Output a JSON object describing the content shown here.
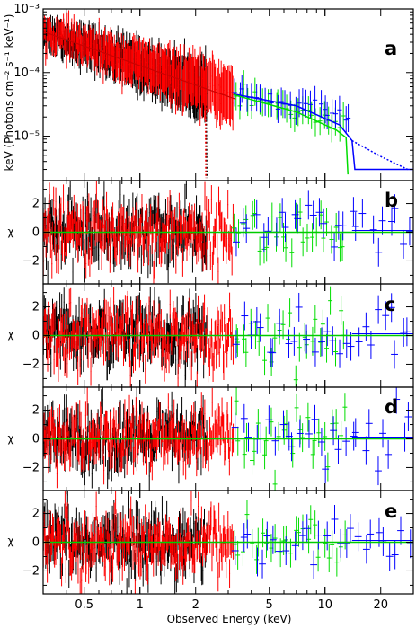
{
  "figure": {
    "x_axis_title": "Observed Energy (keV)",
    "y_axis_title_a": "keV (Photons cm⁻² s⁻¹ keV⁻¹)",
    "y_axis_title_resid": "χ"
  },
  "colors": {
    "pn": "#000000",
    "mos": "#ff0000",
    "isgri": "#00dd00",
    "bat": "#0000ff",
    "model": "#00cc00"
  },
  "chart_data": [
    {
      "type": "scatter",
      "panel": "a",
      "label": "a",
      "x_scale": "log",
      "y_scale": "log",
      "xlim": [
        0.3,
        30
      ],
      "ylim": [
        2e-06,
        0.001
      ],
      "xticks": [
        0.5,
        1,
        2,
        5,
        10,
        20
      ],
      "xtick_labels": [
        "0.5",
        "1",
        "2",
        "5",
        "10",
        "20"
      ],
      "yticks": [
        1e-05,
        0.0001,
        0.001
      ],
      "ytick_labels": [
        "10⁻⁵",
        "10⁻⁴",
        "10⁻³"
      ],
      "series": [
        {
          "color_key": "pn",
          "band": [
            0.3,
            2.3
          ],
          "start": 0.00045,
          "slope": -1.05,
          "scatter": 0.17
        },
        {
          "color_key": "mos",
          "band": [
            0.3,
            3.2
          ],
          "start": 0.00044,
          "slope": -1.0,
          "scatter": 0.16
        },
        {
          "color_key": "isgri",
          "band": [
            3.2,
            13
          ],
          "start": 4.5e-05,
          "slope": -0.75,
          "scatter": 0.18
        },
        {
          "color_key": "bat",
          "band": [
            3.2,
            14
          ],
          "start": 4.8e-05,
          "slope": -0.6,
          "scatter": 0.12
        }
      ],
      "model_lines": [
        {
          "color_key": "bat",
          "style": "solid",
          "x": [
            3.2,
            7,
            12,
            14,
            14.5,
            30
          ],
          "y": [
            4.6e-05,
            3e-05,
            1.5e-05,
            8.5e-06,
            3e-06,
            3e-06
          ]
        },
        {
          "color_key": "isgri",
          "style": "solid",
          "x": [
            3.2,
            7,
            11.5,
            13,
            13.3
          ],
          "y": [
            4.5e-05,
            2.4e-05,
            1.25e-05,
            9.5e-06,
            2.5e-06
          ]
        },
        {
          "color_key": "bat",
          "style": "dotted",
          "x": [
            14,
            20,
            28
          ],
          "y": [
            8.5e-06,
            4.8e-06,
            3e-06
          ]
        },
        {
          "color_key": "pn",
          "style": "dotted",
          "x": [
            2.28,
            2.3
          ],
          "y": [
            3e-05,
            2.2e-06
          ]
        },
        {
          "color_key": "mos",
          "style": "dotted",
          "x": [
            2.26,
            2.27
          ],
          "y": [
            3e-05,
            2.2e-06
          ]
        }
      ]
    },
    {
      "type": "scatter",
      "panel": "b",
      "label": "b",
      "x_scale": "log",
      "xlim": [
        0.3,
        30
      ],
      "ylim": [
        -3.6,
        3.6
      ],
      "yticks": [
        -2,
        0,
        2
      ],
      "ytick_labels": [
        "−2",
        "0",
        "2"
      ],
      "reference_line": 0,
      "series": [
        {
          "color_key": "pn",
          "band": [
            0.3,
            2.3
          ]
        },
        {
          "color_key": "mos",
          "band": [
            0.3,
            3.2
          ]
        },
        {
          "color_key": "isgri",
          "band": [
            3.2,
            13
          ]
        },
        {
          "color_key": "bat",
          "band": [
            3.2,
            30
          ]
        }
      ]
    },
    {
      "type": "scatter",
      "panel": "c",
      "label": "c",
      "x_scale": "log",
      "xlim": [
        0.3,
        30
      ],
      "ylim": [
        -3.6,
        3.6
      ],
      "yticks": [
        -2,
        0,
        2
      ],
      "ytick_labels": [
        "−2",
        "0",
        "2"
      ],
      "reference_line": 0,
      "series": [
        {
          "color_key": "pn",
          "band": [
            0.3,
            2.3
          ]
        },
        {
          "color_key": "mos",
          "band": [
            0.3,
            3.2
          ]
        },
        {
          "color_key": "isgri",
          "band": [
            3.2,
            13
          ]
        },
        {
          "color_key": "bat",
          "band": [
            3.2,
            30
          ]
        }
      ]
    },
    {
      "type": "scatter",
      "panel": "d",
      "label": "d",
      "x_scale": "log",
      "xlim": [
        0.3,
        30
      ],
      "ylim": [
        -3.6,
        3.6
      ],
      "yticks": [
        -2,
        0,
        2
      ],
      "ytick_labels": [
        "−2",
        "0",
        "2"
      ],
      "reference_line": 0,
      "series": [
        {
          "color_key": "pn",
          "band": [
            0.3,
            2.3
          ]
        },
        {
          "color_key": "mos",
          "band": [
            0.3,
            3.2
          ]
        },
        {
          "color_key": "isgri",
          "band": [
            3.2,
            13
          ]
        },
        {
          "color_key": "bat",
          "band": [
            3.2,
            30
          ]
        }
      ]
    },
    {
      "type": "scatter",
      "panel": "e",
      "label": "e",
      "x_scale": "log",
      "xlim": [
        0.3,
        30
      ],
      "ylim": [
        -3.6,
        3.6
      ],
      "yticks": [
        -2,
        0,
        2
      ],
      "ytick_labels": [
        "−2",
        "0",
        "2"
      ],
      "reference_line": 0,
      "series": [
        {
          "color_key": "pn",
          "band": [
            0.3,
            2.3
          ]
        },
        {
          "color_key": "mos",
          "band": [
            0.3,
            3.2
          ]
        },
        {
          "color_key": "isgri",
          "band": [
            3.2,
            13
          ]
        },
        {
          "color_key": "bat",
          "band": [
            3.2,
            30
          ]
        }
      ]
    }
  ]
}
